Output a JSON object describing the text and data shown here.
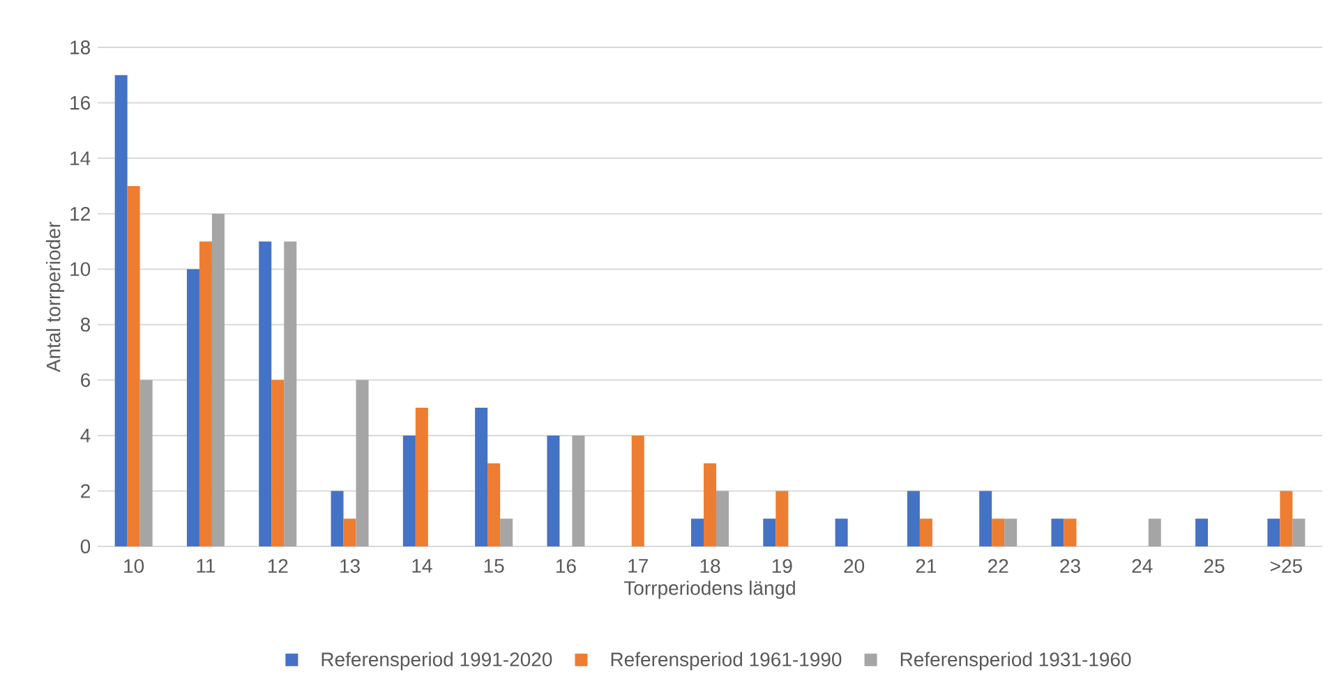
{
  "chart_data": {
    "type": "bar",
    "xlabel": "Torrperiodens längd",
    "ylabel": "Antal torrperioder",
    "categories": [
      "10",
      "11",
      "12",
      "13",
      "14",
      "15",
      "16",
      "17",
      "18",
      "19",
      "20",
      "21",
      "22",
      "23",
      "24",
      "25",
      ">25"
    ],
    "series": [
      {
        "name": "Referensperiod 1991-2020",
        "color": "#4472c4",
        "values": [
          17,
          10,
          11,
          2,
          4,
          5,
          4,
          0,
          1,
          1,
          1,
          2,
          2,
          1,
          0,
          1,
          1
        ]
      },
      {
        "name": "Referensperiod 1961-1990",
        "color": "#ed7d31",
        "values": [
          13,
          11,
          6,
          1,
          5,
          3,
          0,
          4,
          3,
          2,
          0,
          1,
          1,
          1,
          0,
          0,
          2
        ]
      },
      {
        "name": "Referensperiod 1931-1960",
        "color": "#a5a5a5",
        "values": [
          6,
          12,
          11,
          6,
          0,
          1,
          4,
          0,
          2,
          0,
          0,
          0,
          1,
          0,
          1,
          0,
          1
        ]
      }
    ],
    "ylim": [
      0,
      18
    ],
    "yticks": [
      0,
      2,
      4,
      6,
      8,
      10,
      12,
      14,
      16,
      18
    ],
    "grid": "y",
    "legend": "bottom"
  }
}
